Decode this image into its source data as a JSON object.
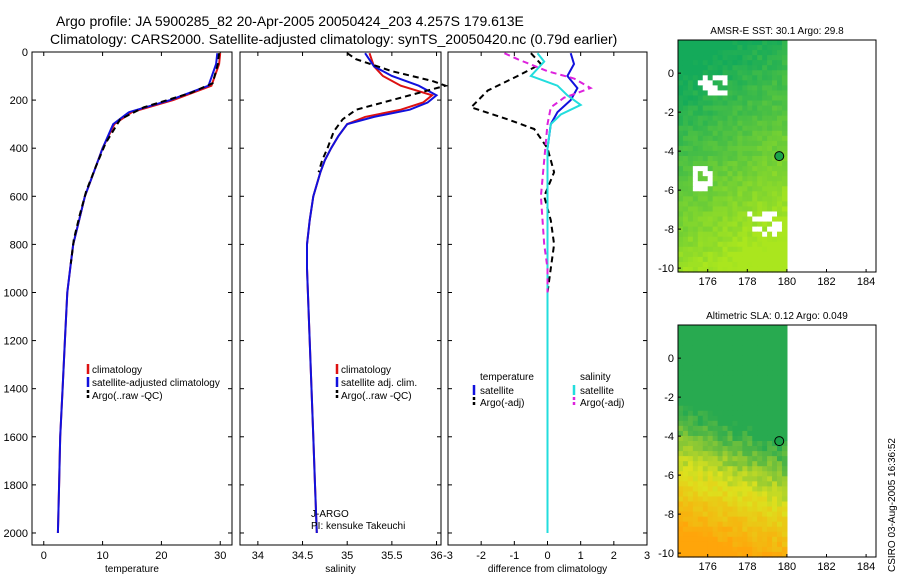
{
  "header": {
    "line1": "Argo profile: JA 5900285_82 20-Apr-2005 20050424_203 4.257S 179.613E",
    "line2": "Climatology: CARS2000. Satellite-adjusted climatology: synTS_20050420.nc (0.79d earlier)"
  },
  "side_label": "CSIRO 03-Aug-2005 16:36:52",
  "colors": {
    "climatology": "#dd1111",
    "satellite": "#1111dd",
    "argo": "#000000",
    "salinity": "#22dddd",
    "argo_sal": "#dd22dd",
    "land": "#1aa34a"
  },
  "chart_data": [
    {
      "type": "line",
      "title": "",
      "xlabel": "temperature",
      "ylabel": "",
      "xlim": [
        -2,
        32
      ],
      "ylim": [
        2050,
        0
      ],
      "xticks": [
        0,
        10,
        20,
        30
      ],
      "yticks": [
        0,
        200,
        400,
        600,
        800,
        1000,
        1200,
        1400,
        1600,
        1800,
        2000
      ],
      "legend": [
        "climatology",
        "satellite-adjusted climatology",
        "Argo(..raw -QC)"
      ],
      "series": [
        {
          "name": "climatology",
          "color": "#dd1111",
          "dash": "",
          "x": [
            30.0,
            29.8,
            28.5,
            22,
            15,
            12,
            10,
            8.5,
            7,
            6,
            5,
            4.5,
            4,
            3.6,
            3.2,
            3,
            2.8,
            2.6,
            2.5,
            2.4
          ],
          "y": [
            5,
            50,
            140,
            200,
            250,
            300,
            400,
            500,
            600,
            700,
            800,
            900,
            1000,
            1200,
            1400,
            1500,
            1600,
            1800,
            1900,
            2000
          ]
        },
        {
          "name": "satellite",
          "color": "#1111dd",
          "dash": "",
          "x": [
            29.5,
            29.3,
            28.0,
            21.5,
            14.5,
            11.8,
            10,
            8.5,
            7,
            6,
            5,
            4.5,
            4,
            3.6,
            3.2,
            3,
            2.8,
            2.6,
            2.5,
            2.4
          ],
          "y": [
            5,
            50,
            140,
            200,
            250,
            300,
            400,
            500,
            600,
            700,
            800,
            900,
            1000,
            1200,
            1400,
            1500,
            1600,
            1800,
            1900,
            2000
          ]
        },
        {
          "name": "argo",
          "color": "#000000",
          "dash": "6,4",
          "x": [
            29.8,
            29.6,
            28.7,
            25,
            17,
            13,
            10.5,
            8.8,
            7.2,
            6.1,
            5.1,
            4.6
          ],
          "y": [
            5,
            50,
            130,
            170,
            230,
            280,
            380,
            480,
            580,
            680,
            780,
            880
          ]
        }
      ]
    },
    {
      "type": "line",
      "xlabel": "salinity",
      "xlim": [
        33.8,
        36.05
      ],
      "ylim": [
        2050,
        0
      ],
      "xticks": [
        34,
        34.5,
        35,
        35.5,
        36
      ],
      "yticks": [],
      "legend": [
        "climatology",
        "satellite adj. clim.",
        "Argo(..raw -QC)"
      ],
      "annotations": [
        "J-ARGO",
        "PI: kensuke Takeuchi"
      ],
      "series": [
        {
          "name": "climatology",
          "color": "#dd1111",
          "dash": "",
          "x": [
            35.25,
            35.3,
            35.4,
            35.6,
            35.95,
            35.85,
            35.6,
            35.2,
            35.0,
            34.9,
            34.82,
            34.75,
            34.7,
            34.62,
            34.58,
            34.55,
            34.55,
            34.56,
            34.58,
            34.6,
            34.62,
            34.64,
            34.66
          ],
          "y": [
            5,
            60,
            100,
            140,
            180,
            210,
            240,
            270,
            300,
            350,
            400,
            450,
            500,
            600,
            700,
            800,
            900,
            1000,
            1200,
            1400,
            1600,
            1800,
            2000
          ]
        },
        {
          "name": "satellite",
          "color": "#1111dd",
          "dash": "",
          "x": [
            35.2,
            35.3,
            35.5,
            35.8,
            36.0,
            35.9,
            35.7,
            35.3,
            35.0,
            34.9,
            34.82,
            34.75,
            34.7,
            34.62,
            34.58,
            34.55,
            34.55,
            34.56,
            34.58,
            34.6,
            34.62,
            34.64,
            34.66
          ],
          "y": [
            5,
            60,
            100,
            140,
            180,
            210,
            240,
            270,
            300,
            350,
            400,
            450,
            500,
            600,
            700,
            800,
            900,
            1000,
            1200,
            1400,
            1600,
            1800,
            2000
          ]
        },
        {
          "name": "argo",
          "color": "#000000",
          "dash": "6,4",
          "x": [
            35.0,
            35.1,
            35.5,
            35.95,
            36.1,
            35.8,
            35.5,
            35.1,
            34.95,
            34.85,
            34.78,
            34.72,
            34.68
          ],
          "y": [
            5,
            30,
            80,
            120,
            140,
            170,
            200,
            240,
            280,
            330,
            400,
            450,
            500
          ]
        }
      ]
    },
    {
      "type": "line",
      "xlabel": "difference from climatology",
      "xlim": [
        -3,
        3
      ],
      "ylim": [
        2050,
        0
      ],
      "xticks": [
        -3,
        -2,
        -1,
        0,
        1,
        2,
        3
      ],
      "yticks": [],
      "legend": [
        "temperature",
        "satellite",
        "Argo(-adj)",
        "salinity",
        "satellite",
        "Argo(-adj)"
      ],
      "series": [
        {
          "name": "temperature satellite",
          "color": "#1111dd",
          "dash": "",
          "x": [
            0.7,
            0.8,
            0.6,
            0.9,
            0.7,
            0.3,
            0.1,
            0,
            0,
            0,
            0,
            0,
            0
          ],
          "y": [
            5,
            50,
            100,
            150,
            200,
            250,
            300,
            400,
            600,
            800,
            1000,
            1500,
            2000
          ]
        },
        {
          "name": "temperature Argo(-adj)",
          "color": "#000000",
          "dash": "6,4",
          "x": [
            -0.5,
            -0.2,
            -0.9,
            -1.8,
            -2.3,
            -1.2,
            -0.4,
            0,
            0.2,
            -0.1,
            0.1,
            0.2,
            0.1,
            0,
            0
          ],
          "y": [
            5,
            50,
            100,
            160,
            230,
            280,
            320,
            400,
            500,
            600,
            700,
            800,
            900,
            1000,
            1100
          ]
        },
        {
          "name": "salinity satellite",
          "color": "#22dddd",
          "dash": "",
          "x": [
            -0.3,
            -0.1,
            -0.5,
            0.3,
            0.6,
            1.0,
            0.4,
            0.1,
            0,
            0,
            0,
            0
          ],
          "y": [
            5,
            40,
            100,
            140,
            180,
            220,
            260,
            300,
            400,
            800,
            1500,
            2000
          ]
        },
        {
          "name": "salinity Argo(-adj)",
          "color": "#dd22dd",
          "dash": "6,4",
          "x": [
            -1.3,
            -0.9,
            0,
            0.8,
            1.3,
            0.5,
            0.1,
            0,
            -0.2,
            -0.1,
            0,
            0
          ],
          "y": [
            5,
            30,
            80,
            110,
            150,
            190,
            230,
            300,
            600,
            800,
            900,
            1000
          ]
        }
      ]
    },
    {
      "type": "heatmap",
      "title": "AMSR-E SST: 30.1 Argo: 29.8",
      "xlim": [
        174.5,
        184.5
      ],
      "ylim": [
        -10.2,
        1.7
      ],
      "xticks": [
        176,
        178,
        180,
        182,
        184
      ],
      "yticks": [
        0,
        -2,
        -4,
        -6,
        -8,
        -10
      ],
      "argo_position": {
        "lon": 179.613,
        "lat": -4.257
      }
    },
    {
      "type": "heatmap",
      "title": "Altimetric SLA: 0.12 Argo: 0.049",
      "xlim": [
        174.5,
        184.5
      ],
      "ylim": [
        -10.2,
        1.7
      ],
      "xticks": [
        176,
        178,
        180,
        182,
        184
      ],
      "yticks": [
        0,
        -2,
        -4,
        -6,
        -8,
        -10
      ],
      "argo_position": {
        "lon": 179.613,
        "lat": -4.257
      }
    }
  ]
}
